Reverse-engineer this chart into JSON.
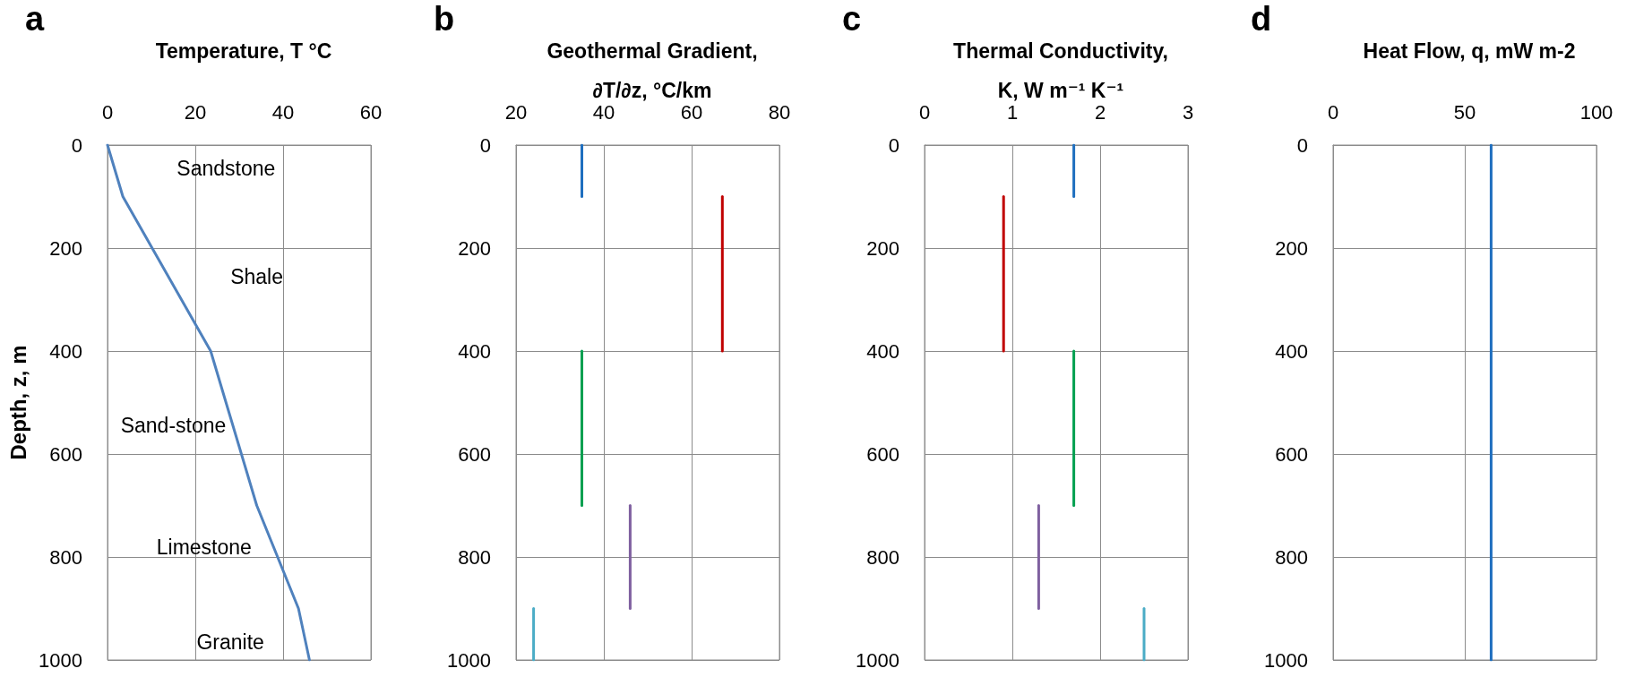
{
  "chart_data": [
    {
      "type": "line",
      "title": "Temperature, T °C",
      "ylabel": "Depth, z, m",
      "annotations": [
        "a",
        "Sandstone",
        "Shale",
        "Sand-stone",
        "Limestone",
        "Granite"
      ],
      "series": [
        {
          "color": "#4f81bd",
          "x": [
            0,
            3.5,
            23.5,
            34,
            43.5,
            46
          ],
          "values": [
            0,
            100,
            400,
            700,
            900,
            1000
          ]
        }
      ],
      "xlim": [
        0,
        60
      ],
      "xticks": [
        0,
        20,
        40,
        60
      ],
      "ylim": [
        1000,
        0
      ],
      "yticks": [
        0,
        200,
        400,
        600,
        800,
        1000
      ],
      "grid": true,
      "marker": "none",
      "line_style": "solid"
    },
    {
      "type": "line",
      "title": "Geothermal Gradient, ∂T/∂z, °C/km",
      "annotations": [
        "b"
      ],
      "series": [
        {
          "color": "#1f6fbf",
          "x": [
            35,
            35
          ],
          "values": [
            0,
            100
          ]
        },
        {
          "color": "#c00000",
          "x": [
            67,
            67
          ],
          "values": [
            100,
            400
          ]
        },
        {
          "color": "#00a050",
          "x": [
            35,
            35
          ],
          "values": [
            400,
            700
          ]
        },
        {
          "color": "#7f60a0",
          "x": [
            46,
            46
          ],
          "values": [
            700,
            900
          ]
        },
        {
          "color": "#4bacc6",
          "x": [
            24,
            24
          ],
          "values": [
            900,
            1000
          ]
        }
      ],
      "xlim": [
        20,
        80
      ],
      "xticks": [
        20,
        40,
        60,
        80
      ],
      "ylim": [
        1000,
        0
      ],
      "yticks": [
        0,
        200,
        400,
        600,
        800,
        1000
      ],
      "grid": true,
      "marker": "none",
      "line_style": "solid"
    },
    {
      "type": "line",
      "title": "Thermal Conductivity, K, W m⁻¹ K⁻¹",
      "annotations": [
        "c"
      ],
      "series": [
        {
          "color": "#1f6fbf",
          "x": [
            1.7,
            1.7
          ],
          "values": [
            0,
            100
          ]
        },
        {
          "color": "#c00000",
          "x": [
            0.9,
            0.9
          ],
          "values": [
            100,
            400
          ]
        },
        {
          "color": "#00a050",
          "x": [
            1.7,
            1.7
          ],
          "values": [
            400,
            700
          ]
        },
        {
          "color": "#7f60a0",
          "x": [
            1.3,
            1.3
          ],
          "values": [
            700,
            900
          ]
        },
        {
          "color": "#4bacc6",
          "x": [
            2.5,
            2.5
          ],
          "values": [
            900,
            1000
          ]
        }
      ],
      "xlim": [
        0,
        3
      ],
      "xticks": [
        0,
        1,
        2,
        3
      ],
      "ylim": [
        1000,
        0
      ],
      "yticks": [
        0,
        200,
        400,
        600,
        800,
        1000
      ],
      "grid": true,
      "marker": "none",
      "line_style": "solid"
    },
    {
      "type": "line",
      "title": "Heat Flow, q, mW m-2",
      "annotations": [
        "d"
      ],
      "series": [
        {
          "color": "#1f6fbf",
          "x": [
            60,
            60
          ],
          "values": [
            0,
            1000
          ]
        }
      ],
      "xlim": [
        0,
        100
      ],
      "xticks": [
        0,
        50,
        100
      ],
      "ylim": [
        1000,
        0
      ],
      "yticks": [
        0,
        200,
        400,
        600,
        800,
        1000
      ],
      "grid": true,
      "marker": "none",
      "line_style": "solid"
    }
  ]
}
